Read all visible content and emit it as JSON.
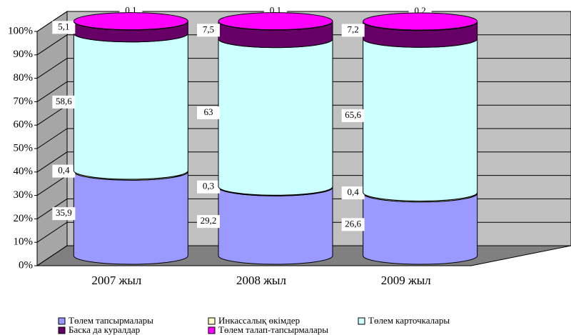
{
  "chart_data": {
    "type": "stacked-cylinder",
    "categories": [
      "2007 жыл",
      "2008 жыл",
      "2009 жыл"
    ],
    "series": [
      {
        "name": "Төлем тапсырмалары",
        "color": "#9999ff",
        "values": [
          35.9,
          29.2,
          26.6
        ],
        "value_labels": [
          "35,9",
          "29,2",
          "26,6"
        ]
      },
      {
        "name": "Инкассалық өкімдер",
        "color": "#ffffcc",
        "values": [
          0.4,
          0.3,
          0.4
        ],
        "value_labels": [
          "0,4",
          "0,3",
          "0,4"
        ]
      },
      {
        "name": "Төлем карточкалары",
        "color": "#ccffff",
        "values": [
          58.6,
          63,
          65.6
        ],
        "value_labels": [
          "58,6",
          "63",
          "65,6"
        ]
      },
      {
        "name": "Баска да куралдар",
        "color": "#660066",
        "values": [
          5.1,
          7.5,
          7.2
        ],
        "value_labels": [
          "5,1",
          "7,5",
          "7,2"
        ]
      },
      {
        "name": "Төлем талап-тапсырмалары",
        "color": "#ff00ff",
        "values": [
          0.1,
          0.1,
          0.2
        ],
        "value_labels": [
          "0,1",
          "0,1",
          "0,2"
        ]
      }
    ],
    "ylim": [
      0,
      100
    ],
    "yticks": [
      {
        "value": 0,
        "label": "0%"
      },
      {
        "value": 10,
        "label": "10%"
      },
      {
        "value": 20,
        "label": "20%"
      },
      {
        "value": 30,
        "label": "30%"
      },
      {
        "value": 40,
        "label": "40%"
      },
      {
        "value": 50,
        "label": "50%"
      },
      {
        "value": 60,
        "label": "60%"
      },
      {
        "value": 70,
        "label": "70%"
      },
      {
        "value": 80,
        "label": "80%"
      },
      {
        "value": 90,
        "label": "90%"
      },
      {
        "value": 100,
        "label": "100%"
      }
    ],
    "grid": true
  }
}
